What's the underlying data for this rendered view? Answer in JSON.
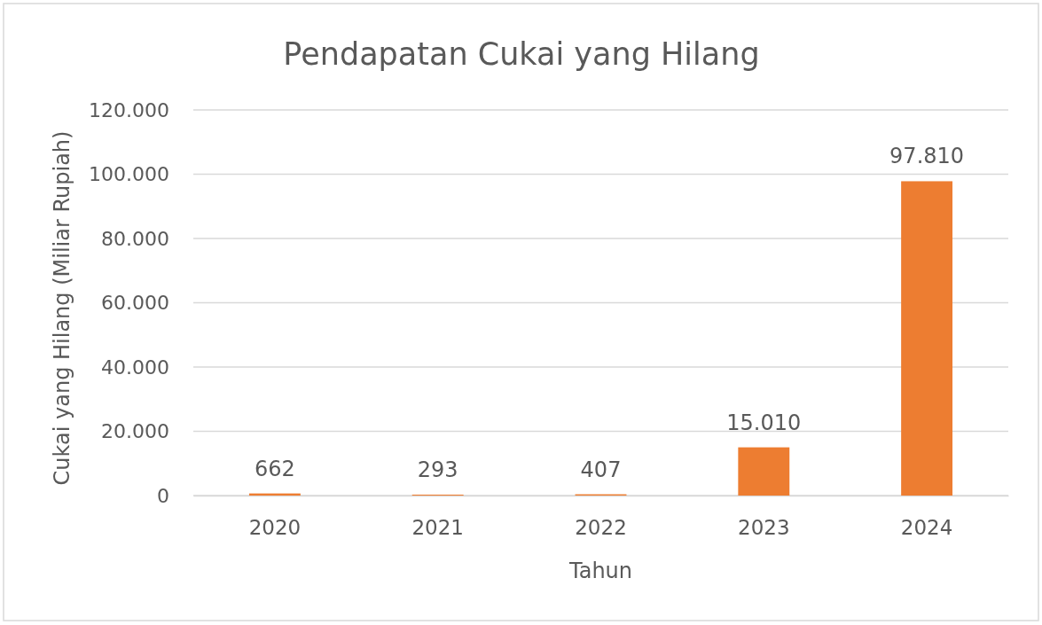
{
  "chart_data": {
    "type": "bar",
    "title": "Pendapatan Cukai yang Hilang",
    "xlabel": "Tahun",
    "ylabel": "Cukai yang Hilang (Miliar Rupiah)",
    "categories": [
      "2020",
      "2021",
      "2022",
      "2023",
      "2024"
    ],
    "values": [
      662,
      293,
      407,
      15010,
      97810
    ],
    "value_labels": [
      "662",
      "293",
      "407",
      "15.010",
      "97.810"
    ],
    "color": "#ed7d31",
    "ylim": [
      0,
      120000
    ],
    "yticks": [
      0,
      {
        "value": 20000,
        "label": "20.000"
      },
      {
        "value": 40000,
        "label": "40.000"
      },
      {
        "value": 60000,
        "label": "60.000"
      },
      {
        "value": 80000,
        "label": "80.000"
      },
      {
        "value": 100000,
        "label": "100.000"
      },
      {
        "value": 120000,
        "label": "120.000"
      }
    ],
    "grid": "y"
  }
}
